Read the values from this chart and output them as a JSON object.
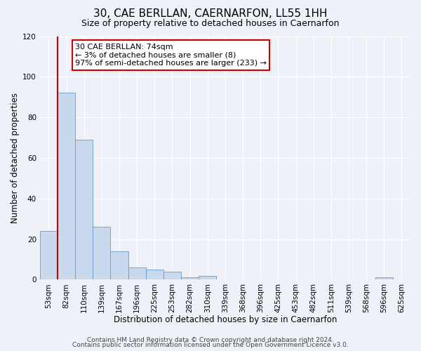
{
  "title": "30, CAE BERLLAN, CAERNARFON, LL55 1HH",
  "subtitle": "Size of property relative to detached houses in Caernarfon",
  "xlabel": "Distribution of detached houses by size in Caernarfon",
  "ylabel": "Number of detached properties",
  "categories": [
    "53sqm",
    "82sqm",
    "110sqm",
    "139sqm",
    "167sqm",
    "196sqm",
    "225sqm",
    "253sqm",
    "282sqm",
    "310sqm",
    "339sqm",
    "368sqm",
    "396sqm",
    "425sqm",
    "453sqm",
    "482sqm",
    "511sqm",
    "539sqm",
    "568sqm",
    "596sqm",
    "625sqm"
  ],
  "values": [
    24,
    92,
    69,
    26,
    14,
    6,
    5,
    4,
    1,
    2,
    0,
    0,
    0,
    0,
    0,
    0,
    0,
    0,
    0,
    1,
    0
  ],
  "bar_color": "#c9d9ed",
  "bar_edge_color": "#6699cc",
  "ylim": [
    0,
    120
  ],
  "yticks": [
    0,
    20,
    40,
    60,
    80,
    100,
    120
  ],
  "annotation_box_text": "30 CAE BERLLAN: 74sqm\n← 3% of detached houses are smaller (8)\n97% of semi-detached houses are larger (233) →",
  "red_line_x": 0.5,
  "footer_line1": "Contains HM Land Registry data © Crown copyright and database right 2024.",
  "footer_line2": "Contains public sector information licensed under the Open Government Licence v3.0.",
  "background_color": "#eef2f8",
  "grid_color": "#ffffff",
  "title_fontsize": 11,
  "subtitle_fontsize": 9,
  "axis_label_fontsize": 8.5,
  "tick_label_fontsize": 7.5,
  "annotation_fontsize": 8,
  "footer_fontsize": 6.5
}
